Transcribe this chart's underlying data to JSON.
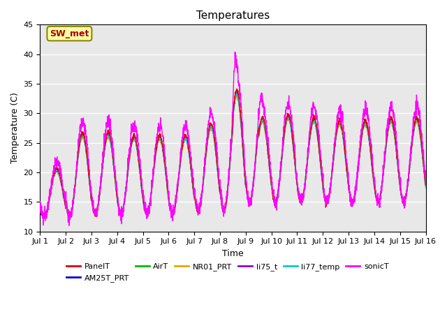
{
  "title": "Temperatures",
  "xlabel": "Time",
  "ylabel": "Temperature (C)",
  "ylim": [
    10,
    45
  ],
  "xlim": [
    0,
    15
  ],
  "xtick_labels": [
    "Jul 1",
    "Jul 2",
    "Jul 3",
    "Jul 4",
    "Jul 5",
    "Jul 6",
    "Jul 7",
    "Jul 8",
    "Jul 9",
    "Jul 10",
    "Jul 11",
    "Jul 12",
    "Jul 13",
    "Jul 14",
    "Jul 15",
    "Jul 16"
  ],
  "series_colors": {
    "PanelT": "#dd0000",
    "AM25T_PRT": "#0000dd",
    "AirT": "#00bb00",
    "NR01_PRT": "#ddaa00",
    "li75_t": "#9900cc",
    "li77_temp": "#00cccc",
    "sonicT": "#ff00ff"
  },
  "annotation_text": "SW_met",
  "annotation_bg": "#ffffaa",
  "annotation_edge": "#888800",
  "annotation_text_color": "#aa0000",
  "bg_color": "#e8e8e8",
  "days": 15,
  "samples_per_day": 144
}
